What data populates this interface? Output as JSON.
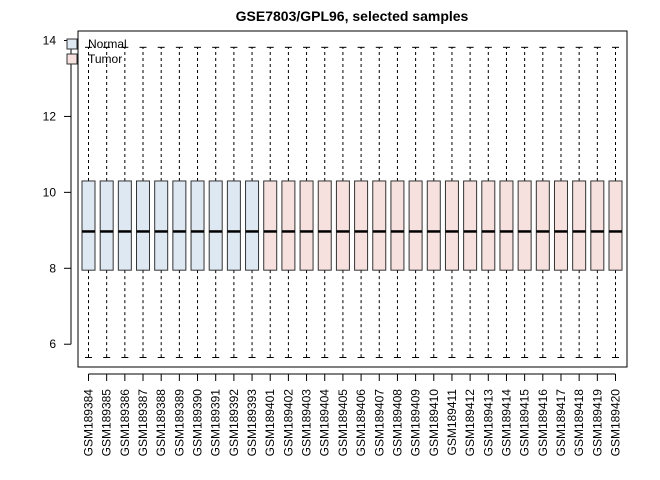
{
  "chart_data": {
    "type": "boxplot",
    "title": "GSE7803/GPL96, selected samples",
    "xlabel": "",
    "ylabel": "",
    "ylim": [
      5.4,
      14.25
    ],
    "yticks": [
      6,
      8,
      10,
      12,
      14
    ],
    "grid": false,
    "legend": {
      "position": "top-left",
      "entries": [
        {
          "label": "Normal",
          "color": "#DEE8F3"
        },
        {
          "label": "Tumor",
          "color": "#F6E1DF"
        }
      ]
    },
    "box_stats": {
      "whisker_low": 5.65,
      "q1": 7.95,
      "median": 8.97,
      "q3": 10.3,
      "whisker_high": 13.82
    },
    "samples": [
      {
        "name": "GSM189384",
        "group": "Normal"
      },
      {
        "name": "GSM189385",
        "group": "Normal"
      },
      {
        "name": "GSM189386",
        "group": "Normal"
      },
      {
        "name": "GSM189387",
        "group": "Normal"
      },
      {
        "name": "GSM189388",
        "group": "Normal"
      },
      {
        "name": "GSM189389",
        "group": "Normal"
      },
      {
        "name": "GSM189390",
        "group": "Normal"
      },
      {
        "name": "GSM189391",
        "group": "Normal"
      },
      {
        "name": "GSM189392",
        "group": "Normal"
      },
      {
        "name": "GSM189393",
        "group": "Normal"
      },
      {
        "name": "GSM189401",
        "group": "Tumor"
      },
      {
        "name": "GSM189402",
        "group": "Tumor"
      },
      {
        "name": "GSM189403",
        "group": "Tumor"
      },
      {
        "name": "GSM189404",
        "group": "Tumor"
      },
      {
        "name": "GSM189405",
        "group": "Tumor"
      },
      {
        "name": "GSM189406",
        "group": "Tumor"
      },
      {
        "name": "GSM189407",
        "group": "Tumor"
      },
      {
        "name": "GSM189408",
        "group": "Tumor"
      },
      {
        "name": "GSM189409",
        "group": "Tumor"
      },
      {
        "name": "GSM189410",
        "group": "Tumor"
      },
      {
        "name": "GSM189411",
        "group": "Tumor"
      },
      {
        "name": "GSM189412",
        "group": "Tumor"
      },
      {
        "name": "GSM189413",
        "group": "Tumor"
      },
      {
        "name": "GSM189414",
        "group": "Tumor"
      },
      {
        "name": "GSM189415",
        "group": "Tumor"
      },
      {
        "name": "GSM189416",
        "group": "Tumor"
      },
      {
        "name": "GSM189417",
        "group": "Tumor"
      },
      {
        "name": "GSM189418",
        "group": "Tumor"
      },
      {
        "name": "GSM189419",
        "group": "Tumor"
      },
      {
        "name": "GSM189420",
        "group": "Tumor"
      }
    ]
  }
}
